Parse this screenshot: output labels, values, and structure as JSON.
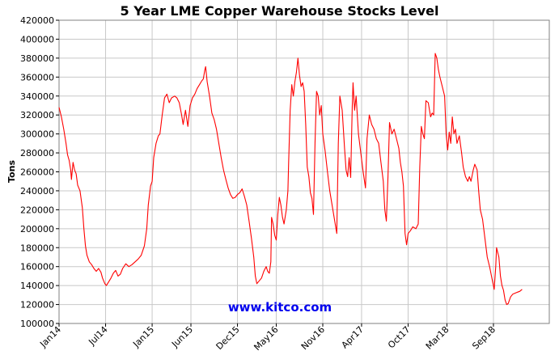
{
  "chart_data": {
    "type": "line",
    "title": "5 Year LME Copper Warehouse Stocks Level",
    "ylabel": "Tons",
    "xlabel": "",
    "ylim": [
      100000,
      420000
    ],
    "yticks": [
      100000,
      120000,
      140000,
      160000,
      180000,
      200000,
      220000,
      240000,
      260000,
      280000,
      300000,
      320000,
      340000,
      360000,
      380000,
      400000,
      420000
    ],
    "xticks": [
      "Jan14",
      "Jul14",
      "Jan15",
      "Jun15",
      "Dec15",
      "May16",
      "Nov16",
      "Apr17",
      "Oct17",
      "Mar18",
      "Sep18"
    ],
    "xtick_months": [
      0,
      6,
      12,
      17,
      23,
      28,
      34,
      39,
      45,
      50,
      56
    ],
    "xlim_months": [
      0,
      63.2
    ],
    "grid": true,
    "line_color": "#ff0000",
    "watermark": "www.kitco.com",
    "series": [
      {
        "values": [
          [
            0,
            328000
          ],
          [
            0.3,
            318000
          ],
          [
            0.6,
            305000
          ],
          [
            0.9,
            290000
          ],
          [
            1.1,
            278000
          ],
          [
            1.3,
            272000
          ],
          [
            1.5,
            262000
          ],
          [
            1.6,
            252000
          ],
          [
            1.8,
            270000
          ],
          [
            2.0,
            262000
          ],
          [
            2.2,
            258000
          ],
          [
            2.4,
            246000
          ],
          [
            2.7,
            240000
          ],
          [
            3.0,
            222000
          ],
          [
            3.2,
            200000
          ],
          [
            3.4,
            182000
          ],
          [
            3.6,
            172000
          ],
          [
            3.9,
            165000
          ],
          [
            4.2,
            162000
          ],
          [
            4.5,
            158000
          ],
          [
            4.8,
            155000
          ],
          [
            5.1,
            158000
          ],
          [
            5.4,
            154000
          ],
          [
            5.6,
            148000
          ],
          [
            5.9,
            142000
          ],
          [
            6.1,
            140000
          ],
          [
            6.4,
            144000
          ],
          [
            6.7,
            148000
          ],
          [
            7.0,
            153000
          ],
          [
            7.3,
            156000
          ],
          [
            7.6,
            150000
          ],
          [
            7.9,
            152000
          ],
          [
            8.2,
            158000
          ],
          [
            8.6,
            163000
          ],
          [
            9.0,
            160000
          ],
          [
            9.4,
            162000
          ],
          [
            9.8,
            165000
          ],
          [
            10.2,
            168000
          ],
          [
            10.6,
            172000
          ],
          [
            11.0,
            182000
          ],
          [
            11.3,
            200000
          ],
          [
            11.5,
            225000
          ],
          [
            11.8,
            245000
          ],
          [
            12.0,
            250000
          ],
          [
            12.2,
            275000
          ],
          [
            12.5,
            290000
          ],
          [
            12.8,
            298000
          ],
          [
            13.0,
            300000
          ],
          [
            13.3,
            320000
          ],
          [
            13.6,
            338000
          ],
          [
            13.9,
            342000
          ],
          [
            14.2,
            333000
          ],
          [
            14.5,
            338000
          ],
          [
            14.9,
            340000
          ],
          [
            15.2,
            338000
          ],
          [
            15.5,
            333000
          ],
          [
            15.8,
            320000
          ],
          [
            16.0,
            310000
          ],
          [
            16.3,
            325000
          ],
          [
            16.6,
            308000
          ],
          [
            16.9,
            330000
          ],
          [
            17.2,
            338000
          ],
          [
            17.5,
            342000
          ],
          [
            17.8,
            348000
          ],
          [
            18.1,
            352000
          ],
          [
            18.4,
            356000
          ],
          [
            18.6,
            358000
          ],
          [
            18.8,
            368000
          ],
          [
            18.9,
            371000
          ],
          [
            19.1,
            355000
          ],
          [
            19.4,
            340000
          ],
          [
            19.7,
            322000
          ],
          [
            20.0,
            315000
          ],
          [
            20.3,
            305000
          ],
          [
            20.6,
            290000
          ],
          [
            20.9,
            275000
          ],
          [
            21.2,
            262000
          ],
          [
            21.5,
            252000
          ],
          [
            21.8,
            243000
          ],
          [
            22.1,
            236000
          ],
          [
            22.4,
            232000
          ],
          [
            22.7,
            233000
          ],
          [
            23.0,
            236000
          ],
          [
            23.3,
            238000
          ],
          [
            23.6,
            242000
          ],
          [
            23.9,
            234000
          ],
          [
            24.2,
            225000
          ],
          [
            24.5,
            208000
          ],
          [
            24.8,
            190000
          ],
          [
            25.1,
            170000
          ],
          [
            25.3,
            150000
          ],
          [
            25.5,
            142000
          ],
          [
            25.8,
            145000
          ],
          [
            26.1,
            148000
          ],
          [
            26.4,
            155000
          ],
          [
            26.7,
            160000
          ],
          [
            26.9,
            155000
          ],
          [
            27.1,
            153000
          ],
          [
            27.3,
            165000
          ],
          [
            27.4,
            212000
          ],
          [
            27.6,
            205000
          ],
          [
            27.8,
            193000
          ],
          [
            28.0,
            188000
          ],
          [
            28.2,
            215000
          ],
          [
            28.4,
            233000
          ],
          [
            28.6,
            225000
          ],
          [
            28.8,
            212000
          ],
          [
            29.0,
            205000
          ],
          [
            29.3,
            220000
          ],
          [
            29.5,
            240000
          ],
          [
            29.6,
            270000
          ],
          [
            29.8,
            325000
          ],
          [
            30.0,
            352000
          ],
          [
            30.2,
            340000
          ],
          [
            30.4,
            355000
          ],
          [
            30.6,
            365000
          ],
          [
            30.8,
            380000
          ],
          [
            31.0,
            362000
          ],
          [
            31.2,
            350000
          ],
          [
            31.4,
            354000
          ],
          [
            31.6,
            345000
          ],
          [
            31.8,
            310000
          ],
          [
            32.0,
            265000
          ],
          [
            32.2,
            255000
          ],
          [
            32.4,
            238000
          ],
          [
            32.6,
            232000
          ],
          [
            32.8,
            215000
          ],
          [
            33.0,
            290000
          ],
          [
            33.2,
            345000
          ],
          [
            33.4,
            340000
          ],
          [
            33.6,
            320000
          ],
          [
            33.8,
            330000
          ],
          [
            34.0,
            300000
          ],
          [
            34.3,
            282000
          ],
          [
            34.6,
            260000
          ],
          [
            34.9,
            240000
          ],
          [
            35.2,
            225000
          ],
          [
            35.5,
            210000
          ],
          [
            35.8,
            195000
          ],
          [
            36.0,
            290000
          ],
          [
            36.2,
            340000
          ],
          [
            36.5,
            325000
          ],
          [
            36.8,
            285000
          ],
          [
            37.0,
            262000
          ],
          [
            37.2,
            255000
          ],
          [
            37.4,
            275000
          ],
          [
            37.6,
            254000
          ],
          [
            37.8,
            328000
          ],
          [
            37.9,
            354000
          ],
          [
            38.1,
            325000
          ],
          [
            38.3,
            340000
          ],
          [
            38.6,
            300000
          ],
          [
            38.9,
            280000
          ],
          [
            39.2,
            260000
          ],
          [
            39.5,
            243000
          ],
          [
            39.7,
            295000
          ],
          [
            40.0,
            320000
          ],
          [
            40.3,
            310000
          ],
          [
            40.6,
            305000
          ],
          [
            40.9,
            295000
          ],
          [
            41.2,
            290000
          ],
          [
            41.5,
            270000
          ],
          [
            41.8,
            250000
          ],
          [
            42.0,
            220000
          ],
          [
            42.2,
            208000
          ],
          [
            42.4,
            255000
          ],
          [
            42.6,
            312000
          ],
          [
            42.9,
            300000
          ],
          [
            43.2,
            305000
          ],
          [
            43.5,
            295000
          ],
          [
            43.8,
            285000
          ],
          [
            44.0,
            270000
          ],
          [
            44.2,
            260000
          ],
          [
            44.4,
            245000
          ],
          [
            44.6,
            195000
          ],
          [
            44.8,
            183000
          ],
          [
            45.0,
            195000
          ],
          [
            45.3,
            198000
          ],
          [
            45.6,
            202000
          ],
          [
            46.0,
            200000
          ],
          [
            46.3,
            205000
          ],
          [
            46.5,
            265000
          ],
          [
            46.7,
            308000
          ],
          [
            46.9,
            300000
          ],
          [
            47.1,
            295000
          ],
          [
            47.3,
            335000
          ],
          [
            47.6,
            333000
          ],
          [
            47.9,
            318000
          ],
          [
            48.1,
            322000
          ],
          [
            48.3,
            320000
          ],
          [
            48.5,
            385000
          ],
          [
            48.7,
            380000
          ],
          [
            48.9,
            368000
          ],
          [
            49.1,
            360000
          ],
          [
            49.4,
            350000
          ],
          [
            49.7,
            340000
          ],
          [
            49.9,
            300000
          ],
          [
            50.1,
            283000
          ],
          [
            50.3,
            302000
          ],
          [
            50.5,
            290000
          ],
          [
            50.7,
            318000
          ],
          [
            50.9,
            300000
          ],
          [
            51.1,
            305000
          ],
          [
            51.3,
            290000
          ],
          [
            51.6,
            298000
          ],
          [
            51.9,
            280000
          ],
          [
            52.1,
            265000
          ],
          [
            52.4,
            255000
          ],
          [
            52.7,
            250000
          ],
          [
            52.9,
            255000
          ],
          [
            53.1,
            250000
          ],
          [
            53.4,
            262000
          ],
          [
            53.6,
            268000
          ],
          [
            53.9,
            262000
          ],
          [
            54.1,
            240000
          ],
          [
            54.3,
            220000
          ],
          [
            54.6,
            210000
          ],
          [
            54.9,
            190000
          ],
          [
            55.2,
            170000
          ],
          [
            55.5,
            160000
          ],
          [
            55.8,
            148000
          ],
          [
            56.1,
            136000
          ],
          [
            56.3,
            160000
          ],
          [
            56.4,
            180000
          ],
          [
            56.7,
            170000
          ],
          [
            56.9,
            150000
          ],
          [
            57.1,
            140000
          ],
          [
            57.3,
            135000
          ],
          [
            57.5,
            125000
          ],
          [
            57.7,
            120000
          ],
          [
            57.9,
            121000
          ],
          [
            58.2,
            128000
          ],
          [
            58.5,
            131000
          ],
          [
            58.8,
            132000
          ],
          [
            59.1,
            133000
          ],
          [
            59.4,
            134000
          ],
          [
            59.7,
            136000
          ]
        ]
      }
    ]
  }
}
